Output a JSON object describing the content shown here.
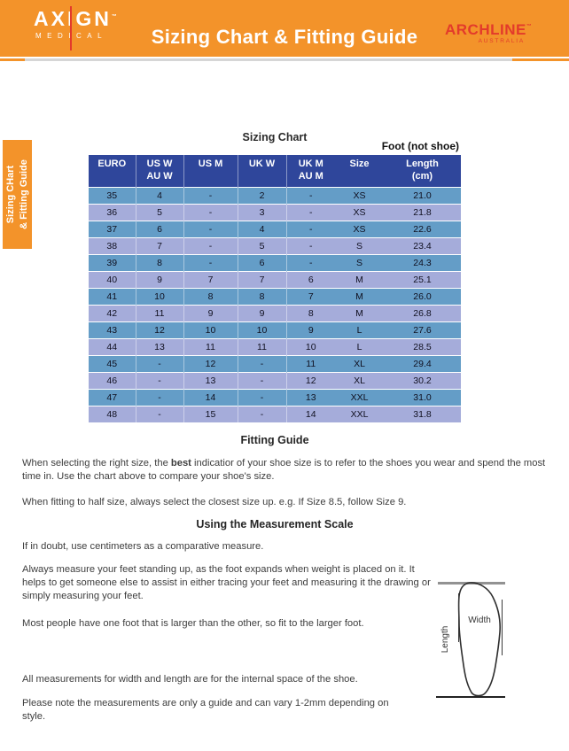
{
  "header": {
    "axign_name": "AXIGN",
    "axign_tm": "™",
    "axign_sub": "MEDICAL",
    "title": "Sizing Chart & Fitting Guide",
    "archline_name": "ARCHLINE",
    "archline_tm": "™",
    "archline_sub": "AUSTRALIA"
  },
  "side_tab": {
    "line1": "Sizing CHart",
    "line2": "& Fitting Guide"
  },
  "sizing_chart": {
    "title": "Sizing Chart",
    "foot_note": "Foot (not shoe)",
    "columns": [
      {
        "top": "EURO",
        "bottom": ""
      },
      {
        "top": "US W",
        "bottom": "AU W"
      },
      {
        "top": "US M",
        "bottom": ""
      },
      {
        "top": "UK W",
        "bottom": ""
      },
      {
        "top": "UK M",
        "bottom": "AU M"
      },
      {
        "top": "Size",
        "bottom": ""
      },
      {
        "top": "Length",
        "bottom": "(cm)"
      }
    ],
    "rows": [
      [
        "35",
        "4",
        "-",
        "2",
        "-",
        "XS",
        "21.0"
      ],
      [
        "36",
        "5",
        "-",
        "3",
        "-",
        "XS",
        "21.8"
      ],
      [
        "37",
        "6",
        "-",
        "4",
        "-",
        "XS",
        "22.6"
      ],
      [
        "38",
        "7",
        "-",
        "5",
        "-",
        "S",
        "23.4"
      ],
      [
        "39",
        "8",
        "-",
        "6",
        "-",
        "S",
        "24.3"
      ],
      [
        "40",
        "9",
        "7",
        "7",
        "6",
        "M",
        "25.1"
      ],
      [
        "41",
        "10",
        "8",
        "8",
        "7",
        "M",
        "26.0"
      ],
      [
        "42",
        "11",
        "9",
        "9",
        "8",
        "M",
        "26.8"
      ],
      [
        "43",
        "12",
        "10",
        "10",
        "9",
        "L",
        "27.6"
      ],
      [
        "44",
        "13",
        "11",
        "11",
        "10",
        "L",
        "28.5"
      ],
      [
        "45",
        "-",
        "12",
        "-",
        "11",
        "XL",
        "29.4"
      ],
      [
        "46",
        "-",
        "13",
        "-",
        "12",
        "XL",
        "30.2"
      ],
      [
        "47",
        "-",
        "14",
        "-",
        "13",
        "XXL",
        "31.0"
      ],
      [
        "48",
        "-",
        "15",
        "-",
        "14",
        "XXL",
        "31.8"
      ]
    ]
  },
  "fitting_guide": {
    "heading": "Fitting Guide",
    "p1_pre": "When selecting the right size, the ",
    "p1_bold": "best",
    "p1_post": " indicatior of your shoe size is to refer to the shoes you wear and spend the most time in. Use the chart above to compare your shoe's size.",
    "p2": "When fitting to half size, always select the closest size up. e.g. If Size 8.5, follow Size 9."
  },
  "measurement": {
    "heading": "Using the Measurement Scale",
    "p1": "If in doubt, use centimeters as a comparative measure.",
    "p2": "Always measure your feet standing up, as the foot expands when weight is placed on it. It helps to get someone else to assist in either tracing your feet and measuring it the drawing or simply measuring your feet.",
    "p3": "Most people have one foot that is larger than the other, so fit to the larger foot.",
    "p4": "All measurements for width and length are for the internal space of the shoe.",
    "p5": "Please note the measurements are only a guide and can vary 1-2mm depending on style."
  },
  "diagram": {
    "width_label": "Width",
    "length_label": "Length"
  },
  "colors": {
    "orange": "#F3932A",
    "red": "#E33A2B",
    "table_header_navy": "#2F469B",
    "row_steel_blue": "#649DC7",
    "row_periwinkle": "#A5ACDA"
  }
}
